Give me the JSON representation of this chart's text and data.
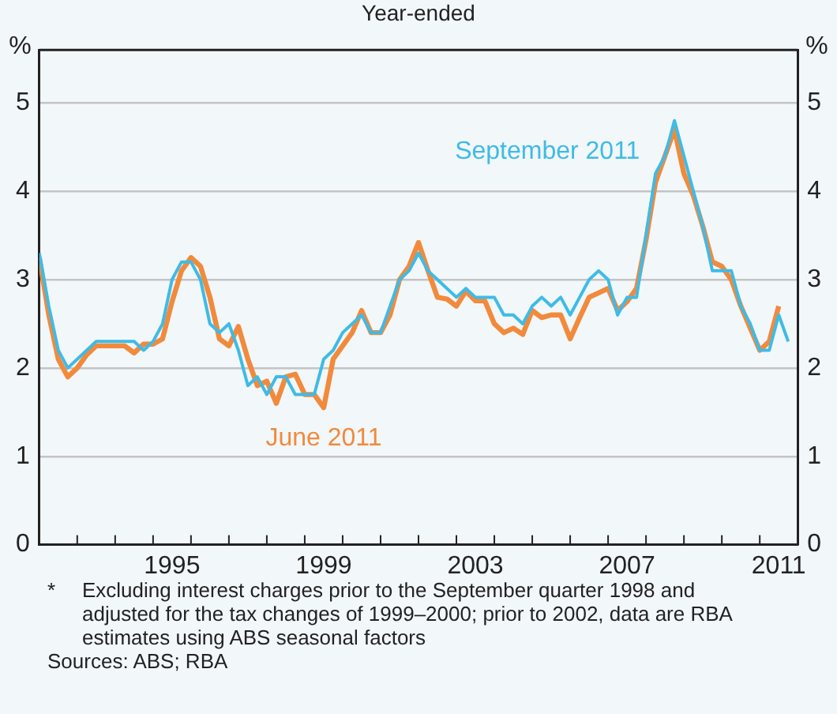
{
  "chart_data": {
    "type": "line",
    "subtitle": "Year-ended",
    "ylabel": "%",
    "y2label": "%",
    "x": [
      1992,
      1992.25,
      1992.5,
      1992.75,
      1993,
      1993.25,
      1993.5,
      1993.75,
      1994,
      1994.25,
      1994.5,
      1994.75,
      1995,
      1995.25,
      1995.5,
      1995.75,
      1996,
      1996.25,
      1996.5,
      1996.75,
      1997,
      1997.25,
      1997.5,
      1997.75,
      1998,
      1998.25,
      1998.5,
      1998.75,
      1999,
      1999.25,
      1999.5,
      1999.75,
      2000,
      2000.25,
      2000.5,
      2000.75,
      2001,
      2001.25,
      2001.5,
      2001.75,
      2002,
      2002.25,
      2002.5,
      2002.75,
      2003,
      2003.25,
      2003.5,
      2003.75,
      2004,
      2004.25,
      2004.5,
      2004.75,
      2005,
      2005.25,
      2005.5,
      2005.75,
      2006,
      2006.25,
      2006.5,
      2006.75,
      2007,
      2007.25,
      2007.5,
      2007.75,
      2008,
      2008.25,
      2008.5,
      2008.75,
      2009,
      2009.25,
      2009.5,
      2009.75,
      2010,
      2010.25,
      2010.5,
      2010.75,
      2011,
      2011.25,
      2011.5,
      2011.75
    ],
    "series": [
      {
        "name": "September 2011",
        "color": "#3fbbe6",
        "values": [
          3.3,
          2.7,
          2.2,
          2.0,
          2.1,
          2.2,
          2.3,
          2.3,
          2.3,
          2.3,
          2.3,
          2.2,
          2.3,
          2.5,
          3.0,
          3.2,
          3.2,
          3.0,
          2.5,
          2.4,
          2.5,
          2.2,
          1.8,
          1.9,
          1.7,
          1.9,
          1.9,
          1.7,
          1.7,
          1.7,
          2.1,
          2.2,
          2.4,
          2.5,
          2.6,
          2.4,
          2.4,
          2.7,
          3.0,
          3.1,
          3.3,
          3.1,
          3.0,
          2.9,
          2.8,
          2.9,
          2.8,
          2.8,
          2.8,
          2.6,
          2.6,
          2.5,
          2.7,
          2.8,
          2.7,
          2.8,
          2.6,
          2.8,
          3.0,
          3.1,
          3.0,
          2.6,
          2.8,
          2.8,
          3.5,
          4.2,
          4.4,
          4.8,
          4.4,
          4.0,
          3.6,
          3.1,
          3.1,
          3.1,
          2.7,
          2.5,
          2.2,
          2.2,
          2.6,
          2.3
        ]
      },
      {
        "name": "June 2011",
        "color": "#f28a3c",
        "values": [
          3.25,
          2.6,
          2.1,
          1.9,
          2.0,
          2.15,
          2.25,
          2.25,
          2.25,
          2.25,
          2.17,
          2.27,
          2.27,
          2.33,
          2.75,
          3.1,
          3.25,
          3.15,
          2.8,
          2.33,
          2.25,
          2.47,
          2.1,
          1.8,
          1.85,
          1.6,
          1.9,
          1.93,
          1.7,
          1.7,
          1.55,
          2.1,
          2.25,
          2.4,
          2.65,
          2.4,
          2.4,
          2.6,
          3.0,
          3.15,
          3.42,
          3.1,
          2.8,
          2.78,
          2.7,
          2.87,
          2.76,
          2.76,
          2.5,
          2.4,
          2.45,
          2.38,
          2.65,
          2.57,
          2.6,
          2.6,
          2.33,
          2.57,
          2.8,
          2.85,
          2.9,
          2.65,
          2.75,
          2.9,
          3.45,
          4.1,
          4.4,
          4.7,
          4.2,
          3.95,
          3.6,
          3.2,
          3.15,
          3.0,
          2.7,
          2.45,
          2.2,
          2.3,
          2.7,
          null
        ]
      }
    ],
    "xlim": [
      1992,
      2012
    ],
    "xticks": [
      {
        "value": 1992,
        "label": null
      },
      {
        "value": 1993,
        "label": null
      },
      {
        "value": 1994,
        "label": null
      },
      {
        "value": 1995,
        "label": null
      },
      {
        "value": 1995.5,
        "label": "1995"
      },
      {
        "value": 1996,
        "label": null
      },
      {
        "value": 1997,
        "label": null
      },
      {
        "value": 1998,
        "label": null
      },
      {
        "value": 1999,
        "label": null
      },
      {
        "value": 1999.5,
        "label": "1999"
      },
      {
        "value": 2000,
        "label": null
      },
      {
        "value": 2001,
        "label": null
      },
      {
        "value": 2002,
        "label": null
      },
      {
        "value": 2003,
        "label": null
      },
      {
        "value": 2003.5,
        "label": "2003"
      },
      {
        "value": 2004,
        "label": null
      },
      {
        "value": 2005,
        "label": null
      },
      {
        "value": 2006,
        "label": null
      },
      {
        "value": 2007,
        "label": null
      },
      {
        "value": 2007.5,
        "label": "2007"
      },
      {
        "value": 2008,
        "label": null
      },
      {
        "value": 2009,
        "label": null
      },
      {
        "value": 2010,
        "label": null
      },
      {
        "value": 2011,
        "label": null
      },
      {
        "value": 2011.5,
        "label": "2011"
      },
      {
        "value": 2012,
        "label": null
      }
    ],
    "ylim": [
      0,
      5.6
    ],
    "yticks": [
      0,
      1,
      2,
      3,
      4,
      5
    ],
    "y2lim": [
      0,
      5.6
    ],
    "y2ticks": [
      0,
      1,
      2,
      3,
      4,
      5
    ],
    "grid": "y",
    "legend": false,
    "marker": "none",
    "line_style": "solid",
    "annotations": [
      "*\tExcluding interest charges prior to the September quarter 1998 and adjusted for the tax changes of 1999–2000; prior to 2002, data are RBA estimates using ABS seasonal factors",
      "Sources: ABS; RBA"
    ]
  }
}
